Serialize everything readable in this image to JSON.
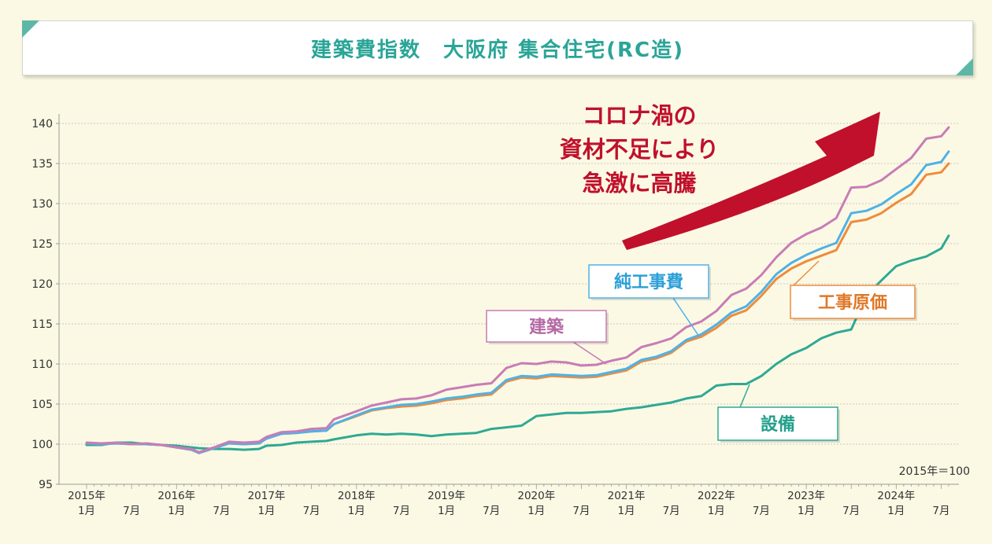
{
  "chart_data": {
    "type": "line",
    "title": "建築費指数　大阪府 集合住宅(RC造)",
    "base_note": "2015年＝100",
    "annotation": [
      "コロナ渦の",
      "資材不足により",
      "急激に高騰"
    ],
    "ylim": [
      95,
      140
    ],
    "y_ticks": [
      95,
      100,
      105,
      110,
      115,
      120,
      125,
      130,
      135,
      140
    ],
    "x_start": "2015-01",
    "x_end": "2024-08",
    "year_labels": [
      "2015年",
      "2016年",
      "2017年",
      "2018年",
      "2019年",
      "2020年",
      "2021年",
      "2022年",
      "2023年",
      "2024年"
    ],
    "month_label_jan": "1月",
    "month_label_jul": "7月",
    "grid": true,
    "series": [
      {
        "name": "建築",
        "color": "#c87cb6",
        "label_color": "#b56aa5",
        "points": [
          [
            "2015-01",
            100.2
          ],
          [
            "2015-03",
            100.1
          ],
          [
            "2015-05",
            100.2
          ],
          [
            "2015-07",
            100.0
          ],
          [
            "2015-09",
            100.1
          ],
          [
            "2015-11",
            99.9
          ],
          [
            "2016-01",
            99.6
          ],
          [
            "2016-03",
            99.4
          ],
          [
            "2016-04",
            99.0
          ],
          [
            "2016-06",
            99.6
          ],
          [
            "2016-08",
            100.3
          ],
          [
            "2016-10",
            100.2
          ],
          [
            "2016-12",
            100.3
          ],
          [
            "2017-01",
            100.9
          ],
          [
            "2017-03",
            101.5
          ],
          [
            "2017-05",
            101.6
          ],
          [
            "2017-07",
            101.9
          ],
          [
            "2017-09",
            102.0
          ],
          [
            "2017-10",
            103.1
          ],
          [
            "2018-01",
            104.1
          ],
          [
            "2018-03",
            104.8
          ],
          [
            "2018-05",
            105.2
          ],
          [
            "2018-07",
            105.6
          ],
          [
            "2018-09",
            105.7
          ],
          [
            "2018-11",
            106.1
          ],
          [
            "2019-01",
            106.8
          ],
          [
            "2019-03",
            107.1
          ],
          [
            "2019-05",
            107.4
          ],
          [
            "2019-07",
            107.6
          ],
          [
            "2019-09",
            109.5
          ],
          [
            "2019-11",
            110.1
          ],
          [
            "2020-01",
            110.0
          ],
          [
            "2020-03",
            110.3
          ],
          [
            "2020-05",
            110.2
          ],
          [
            "2020-07",
            109.8
          ],
          [
            "2020-09",
            109.9
          ],
          [
            "2020-11",
            110.4
          ],
          [
            "2021-01",
            110.8
          ],
          [
            "2021-03",
            112.1
          ],
          [
            "2021-05",
            112.6
          ],
          [
            "2021-07",
            113.2
          ],
          [
            "2021-09",
            114.6
          ],
          [
            "2021-11",
            115.3
          ],
          [
            "2022-01",
            116.6
          ],
          [
            "2022-03",
            118.6
          ],
          [
            "2022-05",
            119.4
          ],
          [
            "2022-07",
            121.1
          ],
          [
            "2022-09",
            123.3
          ],
          [
            "2022-11",
            125.1
          ],
          [
            "2023-01",
            126.2
          ],
          [
            "2023-03",
            127.0
          ],
          [
            "2023-05",
            128.2
          ],
          [
            "2023-07",
            132.0
          ],
          [
            "2023-09",
            132.1
          ],
          [
            "2023-11",
            132.9
          ],
          [
            "2024-01",
            134.3
          ],
          [
            "2024-03",
            135.7
          ],
          [
            "2024-05",
            138.1
          ],
          [
            "2024-07",
            138.4
          ],
          [
            "2024-08",
            139.5
          ]
        ]
      },
      {
        "name": "純工事費",
        "color": "#4fb2e6",
        "label_color": "#2b9fd8",
        "points": [
          [
            "2015-01",
            100.1
          ],
          [
            "2015-03",
            100.0
          ],
          [
            "2015-05",
            100.1
          ],
          [
            "2015-07",
            100.0
          ],
          [
            "2015-09",
            100.0
          ],
          [
            "2015-11",
            99.9
          ],
          [
            "2016-01",
            99.6
          ],
          [
            "2016-03",
            99.3
          ],
          [
            "2016-04",
            98.9
          ],
          [
            "2016-06",
            99.5
          ],
          [
            "2016-08",
            100.1
          ],
          [
            "2016-10",
            100.0
          ],
          [
            "2016-12",
            100.1
          ],
          [
            "2017-01",
            100.7
          ],
          [
            "2017-03",
            101.3
          ],
          [
            "2017-05",
            101.4
          ],
          [
            "2017-07",
            101.6
          ],
          [
            "2017-09",
            101.7
          ],
          [
            "2017-10",
            102.5
          ],
          [
            "2018-01",
            103.6
          ],
          [
            "2018-03",
            104.3
          ],
          [
            "2018-05",
            104.6
          ],
          [
            "2018-07",
            104.9
          ],
          [
            "2018-09",
            105.0
          ],
          [
            "2018-11",
            105.3
          ],
          [
            "2019-01",
            105.7
          ],
          [
            "2019-03",
            105.9
          ],
          [
            "2019-05",
            106.2
          ],
          [
            "2019-07",
            106.4
          ],
          [
            "2019-09",
            108.0
          ],
          [
            "2019-11",
            108.5
          ],
          [
            "2020-01",
            108.4
          ],
          [
            "2020-03",
            108.7
          ],
          [
            "2020-05",
            108.6
          ],
          [
            "2020-07",
            108.5
          ],
          [
            "2020-09",
            108.6
          ],
          [
            "2020-11",
            109.0
          ],
          [
            "2021-01",
            109.4
          ],
          [
            "2021-03",
            110.5
          ],
          [
            "2021-05",
            110.9
          ],
          [
            "2021-07",
            111.6
          ],
          [
            "2021-09",
            113.0
          ],
          [
            "2021-11",
            113.7
          ],
          [
            "2022-01",
            114.9
          ],
          [
            "2022-03",
            116.4
          ],
          [
            "2022-05",
            117.2
          ],
          [
            "2022-07",
            119.0
          ],
          [
            "2022-09",
            121.2
          ],
          [
            "2022-11",
            122.6
          ],
          [
            "2023-01",
            123.6
          ],
          [
            "2023-03",
            124.4
          ],
          [
            "2023-05",
            125.1
          ],
          [
            "2023-07",
            128.8
          ],
          [
            "2023-09",
            129.1
          ],
          [
            "2023-11",
            129.9
          ],
          [
            "2024-01",
            131.2
          ],
          [
            "2024-03",
            132.4
          ],
          [
            "2024-05",
            134.8
          ],
          [
            "2024-07",
            135.2
          ],
          [
            "2024-08",
            136.5
          ]
        ]
      },
      {
        "name": "工事原価",
        "color": "#ee8c3c",
        "label_color": "#e07828",
        "points": [
          [
            "2015-01",
            100.1
          ],
          [
            "2015-03",
            100.0
          ],
          [
            "2015-05",
            100.1
          ],
          [
            "2015-07",
            100.0
          ],
          [
            "2015-09",
            100.0
          ],
          [
            "2015-11",
            99.9
          ],
          [
            "2016-01",
            99.6
          ],
          [
            "2016-03",
            99.3
          ],
          [
            "2016-04",
            98.9
          ],
          [
            "2016-06",
            99.5
          ],
          [
            "2016-08",
            100.1
          ],
          [
            "2016-10",
            100.0
          ],
          [
            "2016-12",
            100.1
          ],
          [
            "2017-01",
            100.7
          ],
          [
            "2017-03",
            101.3
          ],
          [
            "2017-05",
            101.4
          ],
          [
            "2017-07",
            101.6
          ],
          [
            "2017-09",
            101.7
          ],
          [
            "2017-10",
            102.5
          ],
          [
            "2018-01",
            103.5
          ],
          [
            "2018-03",
            104.2
          ],
          [
            "2018-05",
            104.5
          ],
          [
            "2018-07",
            104.7
          ],
          [
            "2018-09",
            104.8
          ],
          [
            "2018-11",
            105.1
          ],
          [
            "2019-01",
            105.5
          ],
          [
            "2019-03",
            105.7
          ],
          [
            "2019-05",
            106.0
          ],
          [
            "2019-07",
            106.2
          ],
          [
            "2019-09",
            107.8
          ],
          [
            "2019-11",
            108.3
          ],
          [
            "2020-01",
            108.2
          ],
          [
            "2020-03",
            108.5
          ],
          [
            "2020-05",
            108.4
          ],
          [
            "2020-07",
            108.3
          ],
          [
            "2020-09",
            108.4
          ],
          [
            "2020-11",
            108.8
          ],
          [
            "2021-01",
            109.2
          ],
          [
            "2021-03",
            110.3
          ],
          [
            "2021-05",
            110.7
          ],
          [
            "2021-07",
            111.4
          ],
          [
            "2021-09",
            112.8
          ],
          [
            "2021-11",
            113.4
          ],
          [
            "2022-01",
            114.5
          ],
          [
            "2022-03",
            116.0
          ],
          [
            "2022-05",
            116.7
          ],
          [
            "2022-07",
            118.5
          ],
          [
            "2022-09",
            120.6
          ],
          [
            "2022-11",
            121.9
          ],
          [
            "2023-01",
            122.8
          ],
          [
            "2023-03",
            123.5
          ],
          [
            "2023-05",
            124.2
          ],
          [
            "2023-07",
            127.7
          ],
          [
            "2023-09",
            128.0
          ],
          [
            "2023-11",
            128.8
          ],
          [
            "2024-01",
            130.1
          ],
          [
            "2024-03",
            131.2
          ],
          [
            "2024-05",
            133.6
          ],
          [
            "2024-07",
            133.9
          ],
          [
            "2024-08",
            135.0
          ]
        ]
      },
      {
        "name": "設備",
        "color": "#2fa993",
        "label_color": "#22a08c",
        "points": [
          [
            "2015-01",
            99.9
          ],
          [
            "2015-03",
            99.9
          ],
          [
            "2015-05",
            100.2
          ],
          [
            "2015-07",
            100.2
          ],
          [
            "2015-09",
            100.0
          ],
          [
            "2015-11",
            99.9
          ],
          [
            "2016-01",
            99.8
          ],
          [
            "2016-03",
            99.6
          ],
          [
            "2016-04",
            99.5
          ],
          [
            "2016-06",
            99.4
          ],
          [
            "2016-08",
            99.4
          ],
          [
            "2016-10",
            99.3
          ],
          [
            "2016-12",
            99.4
          ],
          [
            "2017-01",
            99.8
          ],
          [
            "2017-03",
            99.9
          ],
          [
            "2017-05",
            100.2
          ],
          [
            "2017-07",
            100.3
          ],
          [
            "2017-09",
            100.4
          ],
          [
            "2017-10",
            100.6
          ],
          [
            "2018-01",
            101.1
          ],
          [
            "2018-03",
            101.3
          ],
          [
            "2018-05",
            101.2
          ],
          [
            "2018-07",
            101.3
          ],
          [
            "2018-09",
            101.2
          ],
          [
            "2018-11",
            101.0
          ],
          [
            "2019-01",
            101.2
          ],
          [
            "2019-03",
            101.3
          ],
          [
            "2019-05",
            101.4
          ],
          [
            "2019-07",
            101.9
          ],
          [
            "2019-09",
            102.1
          ],
          [
            "2019-11",
            102.3
          ],
          [
            "2020-01",
            103.5
          ],
          [
            "2020-03",
            103.7
          ],
          [
            "2020-05",
            103.9
          ],
          [
            "2020-07",
            103.9
          ],
          [
            "2020-09",
            104.0
          ],
          [
            "2020-11",
            104.1
          ],
          [
            "2021-01",
            104.4
          ],
          [
            "2021-03",
            104.6
          ],
          [
            "2021-05",
            104.9
          ],
          [
            "2021-07",
            105.2
          ],
          [
            "2021-09",
            105.7
          ],
          [
            "2021-11",
            106.0
          ],
          [
            "2022-01",
            107.3
          ],
          [
            "2022-03",
            107.5
          ],
          [
            "2022-05",
            107.5
          ],
          [
            "2022-07",
            108.5
          ],
          [
            "2022-09",
            110.0
          ],
          [
            "2022-11",
            111.2
          ],
          [
            "2023-01",
            112.0
          ],
          [
            "2023-03",
            113.2
          ],
          [
            "2023-05",
            113.9
          ],
          [
            "2023-07",
            114.3
          ],
          [
            "2023-09",
            118.5
          ],
          [
            "2023-11",
            120.4
          ],
          [
            "2024-01",
            122.2
          ],
          [
            "2024-03",
            122.9
          ],
          [
            "2024-05",
            123.4
          ],
          [
            "2024-07",
            124.4
          ],
          [
            "2024-08",
            126.0
          ]
        ]
      }
    ],
    "arrow_color": "#c0102c"
  }
}
